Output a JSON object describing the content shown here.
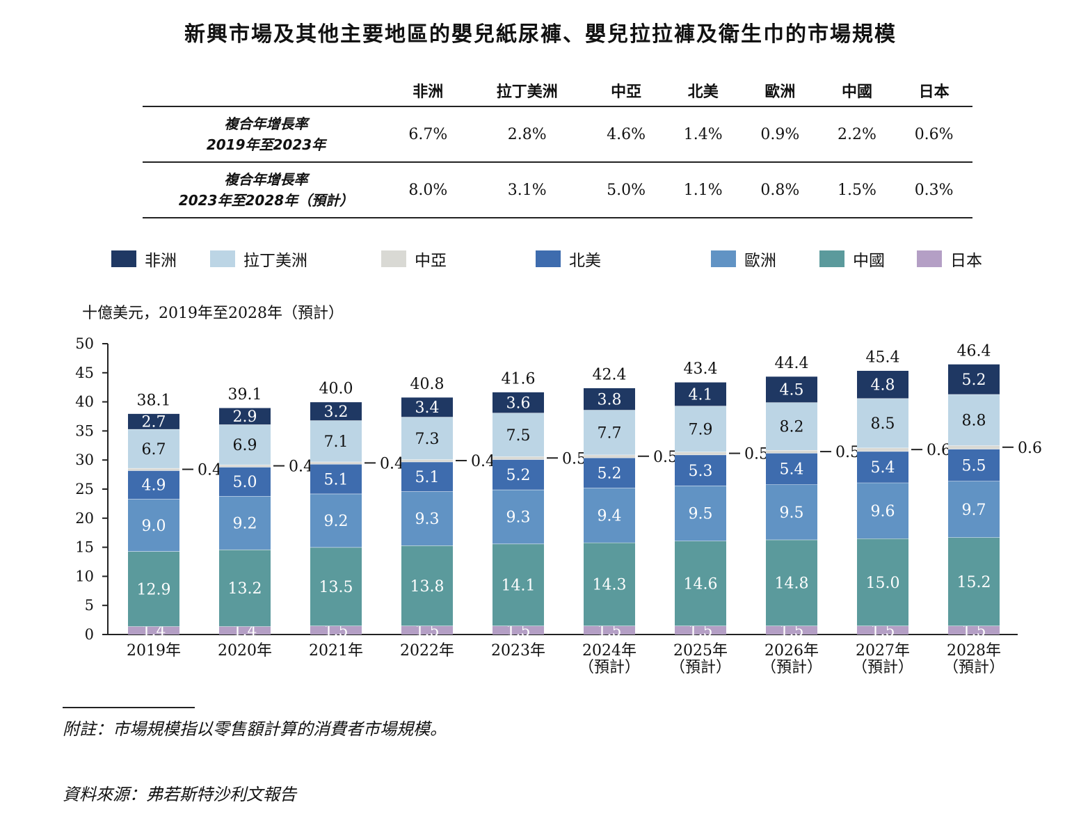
{
  "title": "新興市場及其他主要地區的嬰兒紙尿褲、嬰兒拉拉褲及衛生巾的市場規模",
  "cagr_table": {
    "headers": [
      "非洲",
      "拉丁美洲",
      "中亞",
      "北美",
      "歐洲",
      "中國",
      "日本"
    ],
    "rows": [
      {
        "label_line1": "複合年增長率",
        "label_line2": "2019年至2023年",
        "values": [
          "6.7%",
          "2.8%",
          "4.6%",
          "1.4%",
          "0.9%",
          "2.2%",
          "0.6%"
        ]
      },
      {
        "label_line1": "複合年增長率",
        "label_line2": "2023年至2028年（預計）",
        "values": [
          "8.0%",
          "3.1%",
          "5.0%",
          "1.1%",
          "0.8%",
          "1.5%",
          "0.3%"
        ]
      }
    ]
  },
  "unit_label": "十億美元，2019年至2028年（預計）",
  "footnote": "附註：市場規模指以零售額計算的消費者市場規模。",
  "source": "資料來源：弗若斯特沙利文報告",
  "chart_data": {
    "type": "bar",
    "stacked": true,
    "categories": [
      "2019年",
      "2020年",
      "2021年",
      "2022年",
      "2023年",
      "2024年",
      "2025年",
      "2026年",
      "2027年",
      "2028年"
    ],
    "category_sublabels": [
      "",
      "",
      "",
      "",
      "",
      "（預計）",
      "（預計）",
      "（預計）",
      "（預計）",
      "（預計）"
    ],
    "ylim": [
      0,
      50
    ],
    "yticks": [
      0,
      5,
      10,
      15,
      20,
      25,
      30,
      35,
      40,
      45,
      50
    ],
    "totals": [
      "38.1",
      "39.1",
      "40.0",
      "40.8",
      "41.6",
      "42.4",
      "43.4",
      "44.4",
      "45.4",
      "46.4"
    ],
    "series": [
      {
        "name": "日本",
        "color": "#b49fc5",
        "values": [
          1.4,
          1.4,
          1.5,
          1.5,
          1.5,
          1.5,
          1.5,
          1.5,
          1.5,
          1.5
        ]
      },
      {
        "name": "中國",
        "color": "#5b9a9c",
        "values": [
          12.9,
          13.2,
          13.5,
          13.8,
          14.1,
          14.3,
          14.6,
          14.8,
          15.0,
          15.2
        ]
      },
      {
        "name": "歐洲",
        "color": "#6193c4",
        "values": [
          9.0,
          9.2,
          9.2,
          9.3,
          9.3,
          9.4,
          9.5,
          9.5,
          9.6,
          9.7
        ]
      },
      {
        "name": "北美",
        "color": "#3e6cae",
        "values": [
          4.9,
          5.0,
          5.1,
          5.1,
          5.2,
          5.2,
          5.3,
          5.4,
          5.4,
          5.5
        ]
      },
      {
        "name": "中亞",
        "color": "#d9d9d4",
        "values": [
          0.4,
          0.4,
          0.4,
          0.4,
          0.5,
          0.5,
          0.5,
          0.5,
          0.6,
          0.6
        ]
      },
      {
        "name": "拉丁美洲",
        "color": "#bcd5e5",
        "values": [
          6.7,
          6.9,
          7.1,
          7.3,
          7.5,
          7.7,
          7.9,
          8.2,
          8.5,
          8.8
        ]
      },
      {
        "name": "非洲",
        "color": "#1f3863",
        "values": [
          2.7,
          2.9,
          3.2,
          3.4,
          3.6,
          3.8,
          4.1,
          4.5,
          4.8,
          5.2
        ]
      }
    ],
    "legend": [
      {
        "name": "非洲",
        "color": "#1f3863"
      },
      {
        "name": "拉丁美洲",
        "color": "#bcd5e5"
      },
      {
        "name": "中亞",
        "color": "#d9d9d4"
      },
      {
        "name": "北美",
        "color": "#3e6cae"
      },
      {
        "name": "歐洲",
        "color": "#6193c4"
      },
      {
        "name": "中國",
        "color": "#5b9a9c"
      },
      {
        "name": "日本",
        "color": "#b49fc5"
      }
    ]
  }
}
